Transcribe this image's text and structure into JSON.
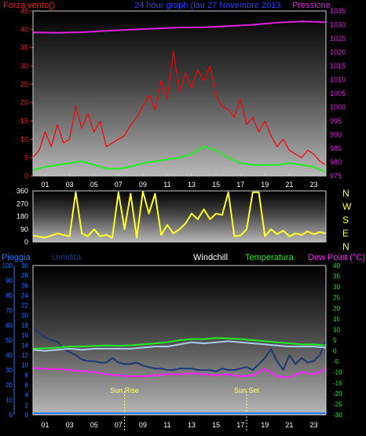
{
  "colors": {
    "wind": "#ff0000",
    "gust": "#ff1a1a",
    "avg_wind": "#22ee22",
    "pressure": "#e020e0",
    "direction": "#ffff22",
    "rain": "#1e78ff",
    "humidity": "#1a3a78",
    "windchill": "#aaccee",
    "temperature": "#22ee22",
    "dew_point": "#ff22ff",
    "sun_marker": "#ffff66",
    "left_axis_red": "#ff2020",
    "left_axis_blue": "#1e78ff",
    "right_axis_magenta": "#e020e0",
    "right_axis_green": "#22ee22",
    "compass": "#ffff22"
  },
  "panel1": {
    "label_left": "Forza vento()",
    "title": "24 hour graph (lau 27 Novembre 2013",
    "label_right": "Pressione"
  },
  "panel3": {
    "label_rain": "Pioggia",
    "label_humidity": "Umidità",
    "label_windchill": "Windchill",
    "label_temperature": "Temperatura",
    "label_dew": "Dew Point (°C)",
    "sun_rise": "Sun Rise",
    "sun_set": "Sun Set"
  },
  "chart_data": [
    {
      "type": "line",
      "title": "24 hour graph (lau 27 Novembre 2013",
      "ylabel": "Forza vento()",
      "y2label": "Pressione",
      "x_ticks": [
        "01",
        "03",
        "05",
        "07",
        "09",
        "11",
        "13",
        "15",
        "17",
        "19",
        "21",
        "23"
      ],
      "ylim": [
        0,
        45
      ],
      "y_ticks": [
        0,
        5,
        10,
        15,
        20,
        25,
        30,
        35,
        40,
        45
      ],
      "y2lim": [
        975,
        1035
      ],
      "y2_ticks": [
        975,
        980,
        985,
        990,
        995,
        1000,
        1005,
        1010,
        1015,
        1020,
        1025,
        1030,
        1035
      ],
      "grid": false,
      "series": [
        {
          "key": "pressure",
          "axis": "right",
          "x": [
            0,
            2,
            4,
            6,
            8,
            10,
            12,
            14,
            16,
            18,
            20,
            22,
            24
          ],
          "values": [
            1027.2,
            1027.1,
            1027.3,
            1027.8,
            1028.2,
            1028.6,
            1029.0,
            1029.1,
            1029.5,
            1030.0,
            1030.8,
            1031.2,
            1030.9
          ]
        },
        {
          "key": "avg_wind",
          "axis": "left",
          "x": [
            0,
            1,
            2,
            3,
            4,
            5,
            6,
            7,
            8,
            9,
            10,
            11,
            12,
            13,
            14,
            15,
            16,
            17,
            18,
            19,
            20,
            21,
            22,
            23,
            24
          ],
          "values": [
            1.5,
            2.5,
            3,
            3.5,
            4,
            3,
            2,
            2,
            2.5,
            3.5,
            4,
            4.5,
            5,
            6,
            8,
            7,
            5,
            3.5,
            3,
            3,
            3,
            3.5,
            3,
            2.5,
            1
          ]
        },
        {
          "key": "wind",
          "axis": "left",
          "x": [
            0,
            0.5,
            1,
            1.5,
            2,
            2.5,
            3,
            3.5,
            4,
            4.5,
            5,
            5.5,
            6,
            6.5,
            7,
            7.5,
            8,
            8.5,
            9,
            9.5,
            10,
            10.5,
            11,
            11.5,
            12,
            12.5,
            13,
            13.5,
            14,
            14.5,
            15,
            15.5,
            16,
            16.5,
            17,
            17.5,
            18,
            18.5,
            19,
            19.5,
            20,
            20.5,
            21,
            21.5,
            22,
            22.5,
            23,
            23.5,
            24
          ],
          "values": [
            5,
            7,
            12,
            8,
            14,
            9,
            10,
            19,
            13,
            17,
            12,
            15,
            8,
            9,
            10,
            11,
            14,
            16,
            19,
            22,
            18,
            26,
            21,
            34,
            23,
            28,
            24,
            29,
            26,
            30,
            22,
            19,
            18,
            16,
            21,
            14,
            16,
            12,
            15,
            11,
            8,
            10,
            7,
            6,
            5,
            7,
            6,
            4,
            3
          ]
        }
      ]
    },
    {
      "type": "line",
      "x_ticks": [],
      "ylim": [
        0,
        360
      ],
      "y_ticks": [
        0,
        90,
        180,
        270,
        360
      ],
      "compass": [
        "N",
        "W",
        "S",
        "E",
        "N"
      ],
      "grid": false,
      "series": [
        {
          "key": "direction",
          "x": [
            0,
            1,
            2,
            3,
            3.5,
            4,
            4.5,
            5,
            5.5,
            6,
            6.5,
            7,
            7.5,
            8,
            8.5,
            9,
            9.5,
            10,
            10.5,
            11,
            11.5,
            12,
            12.5,
            13,
            13.5,
            14,
            14.5,
            15,
            15.5,
            16,
            16.5,
            17,
            17.5,
            18,
            18.5,
            19,
            19.5,
            20,
            20.5,
            21,
            21.5,
            22,
            22.5,
            23,
            23.5,
            24
          ],
          "values": [
            45,
            30,
            60,
            40,
            350,
            60,
            40,
            90,
            40,
            50,
            30,
            350,
            90,
            340,
            30,
            355,
            200,
            340,
            50,
            120,
            60,
            90,
            130,
            200,
            160,
            230,
            160,
            200,
            190,
            350,
            40,
            45,
            90,
            350,
            350,
            40,
            90,
            55,
            80,
            40,
            60,
            50,
            75,
            55,
            70,
            60
          ]
        }
      ]
    },
    {
      "type": "line",
      "ylabel": "Pioggia",
      "y2label": "Dew Point (°C)",
      "x_ticks": [
        "01",
        "03",
        "05",
        "07",
        "09",
        "11",
        "13",
        "15",
        "17",
        "19",
        "21",
        "23"
      ],
      "rain_ticks": [
        0,
        2,
        4,
        6,
        8,
        10,
        12,
        14,
        16,
        18,
        20,
        22,
        24,
        26,
        28,
        30
      ],
      "humidity_ticks": [
        0,
        10,
        20,
        30,
        40,
        50,
        60,
        70,
        80,
        90,
        100
      ],
      "ylim": [
        0,
        100
      ],
      "y2lim": [
        -30,
        40
      ],
      "y2_ticks": [
        -30,
        -25,
        -20,
        -15,
        -10,
        -5,
        0,
        5,
        10,
        15,
        20,
        25,
        30,
        35,
        40
      ],
      "sun_rise_x": 7.5,
      "sun_set_x": 17.5,
      "grid": false,
      "series": [
        {
          "key": "rain",
          "axis": "left",
          "x": [
            0,
            24
          ],
          "values": [
            0,
            0
          ]
        },
        {
          "key": "humidity",
          "axis": "left",
          "x": [
            0,
            0.5,
            1,
            1.5,
            2,
            2.5,
            3,
            3.5,
            4,
            4.5,
            5,
            5.5,
            6,
            6.5,
            7,
            7.5,
            8,
            8.5,
            9,
            9.5,
            10,
            10.5,
            11,
            11.5,
            12,
            12.5,
            13,
            13.5,
            14,
            14.5,
            15,
            15.5,
            16,
            16.5,
            17,
            17.5,
            18,
            18.5,
            19,
            19.5,
            20,
            20.5,
            21,
            21.5,
            22,
            22.5,
            23,
            23.5,
            24
          ],
          "values": [
            58,
            55,
            52,
            50,
            49,
            44,
            42,
            40,
            37,
            36,
            36,
            35,
            35,
            38,
            35,
            34,
            34,
            35,
            33,
            32,
            31,
            31,
            30,
            30,
            31,
            31,
            31,
            30,
            30,
            30,
            29,
            31,
            30,
            30,
            31,
            32,
            30,
            34,
            38,
            44,
            36,
            30,
            40,
            34,
            38,
            35,
            36,
            40,
            50
          ]
        },
        {
          "key": "windchill",
          "axis": "right",
          "x": [
            0,
            1,
            2,
            3,
            4,
            5,
            6,
            7,
            8,
            9,
            10,
            11,
            12,
            13,
            14,
            15,
            16,
            17,
            18,
            19,
            20,
            21,
            22,
            23,
            24
          ],
          "values": [
            0.5,
            0,
            0.5,
            1,
            0.5,
            1,
            1,
            1,
            1,
            1.5,
            2,
            2,
            3,
            4,
            3.5,
            4,
            4.5,
            4,
            3.5,
            3,
            2.5,
            2,
            2,
            2,
            1.5
          ]
        },
        {
          "key": "temperature",
          "axis": "right",
          "x": [
            0,
            1,
            2,
            3,
            4,
            5,
            6,
            7,
            8,
            9,
            10,
            11,
            12,
            13,
            14,
            15,
            16,
            17,
            18,
            19,
            20,
            21,
            22,
            23,
            24
          ],
          "values": [
            1,
            1.2,
            1.5,
            2,
            2,
            2.3,
            2.5,
            2.4,
            2.6,
            3,
            3.5,
            4,
            5,
            5.5,
            5.5,
            6,
            5.8,
            5.5,
            5,
            4.5,
            4,
            3.5,
            3,
            3,
            2.5
          ]
        },
        {
          "key": "dew_point",
          "axis": "right",
          "x": [
            0,
            1,
            2,
            3,
            4,
            5,
            6,
            7,
            8,
            9,
            10,
            11,
            12,
            13,
            14,
            15,
            16,
            17,
            18,
            19,
            20,
            21,
            22,
            23,
            24
          ],
          "values": [
            -8,
            -8.5,
            -8.5,
            -9,
            -9.5,
            -10,
            -11,
            -11.5,
            -12,
            -12,
            -11.5,
            -11,
            -11,
            -10.5,
            -11,
            -11.5,
            -11,
            -12,
            -11.5,
            -8.5,
            -12,
            -12.5,
            -10,
            -11,
            -8.5
          ]
        }
      ]
    }
  ]
}
